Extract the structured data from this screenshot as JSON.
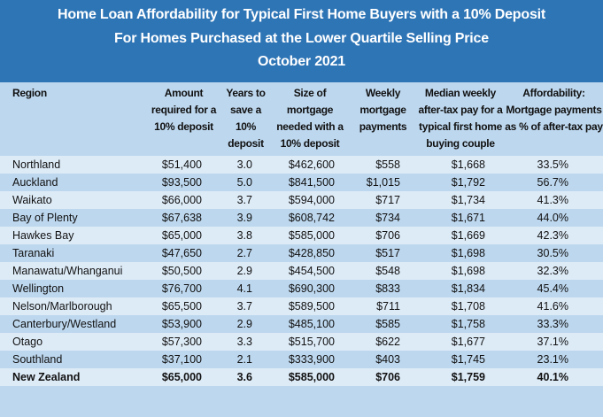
{
  "title": {
    "line1": "Home Loan Affordability for Typical First Home Buyers with a 10% Deposit",
    "line2": "For Homes Purchased at the Lower Quartile Selling Price",
    "line3": "October 2021"
  },
  "colors": {
    "title_bg": "#2e75b6",
    "row_light": "#ddebf7",
    "row_dark": "#bdd7ee"
  },
  "headers": [
    "Region",
    "Amount required for a 10% deposit",
    "Years to save a 10% deposit",
    "Size of mortgage needed with a 10% deposit",
    "Weekly mortgage payments",
    "Median weekly after-tax pay for a typical first home buying couple",
    "Affordability: Mortgage payments as % of after-tax pay"
  ],
  "rows": [
    [
      "Northland",
      "$51,400",
      "3.0",
      "$462,600",
      "$558",
      "$1,668",
      "33.5%"
    ],
    [
      "Auckland",
      "$93,500",
      "5.0",
      "$841,500",
      "$1,015",
      "$1,792",
      "56.7%"
    ],
    [
      "Waikato",
      "$66,000",
      "3.7",
      "$594,000",
      "$717",
      "$1,734",
      "41.3%"
    ],
    [
      "Bay of Plenty",
      "$67,638",
      "3.9",
      "$608,742",
      "$734",
      "$1,671",
      "44.0%"
    ],
    [
      "Hawkes Bay",
      "$65,000",
      "3.8",
      "$585,000",
      "$706",
      "$1,669",
      "42.3%"
    ],
    [
      "Taranaki",
      "$47,650",
      "2.7",
      "$428,850",
      "$517",
      "$1,698",
      "30.5%"
    ],
    [
      "Manawatu/Whanganui",
      "$50,500",
      "2.9",
      "$454,500",
      "$548",
      "$1,698",
      "32.3%"
    ],
    [
      "Wellington",
      "$76,700",
      "4.1",
      "$690,300",
      "$833",
      "$1,834",
      "45.4%"
    ],
    [
      "Nelson/Marlborough",
      "$65,500",
      "3.7",
      "$589,500",
      "$711",
      "$1,708",
      "41.6%"
    ],
    [
      "Canterbury/Westland",
      "$53,900",
      "2.9",
      "$485,100",
      "$585",
      "$1,758",
      "33.3%"
    ],
    [
      "Otago",
      "$57,300",
      "3.3",
      "$515,700",
      "$622",
      "$1,677",
      "37.1%"
    ],
    [
      "Southland",
      "$37,100",
      "2.1",
      "$333,900",
      "$403",
      "$1,745",
      "23.1%"
    ]
  ],
  "total": [
    "New Zealand",
    "$65,000",
    "3.6",
    "$585,000",
    "$706",
    "$1,759",
    "40.1%"
  ]
}
